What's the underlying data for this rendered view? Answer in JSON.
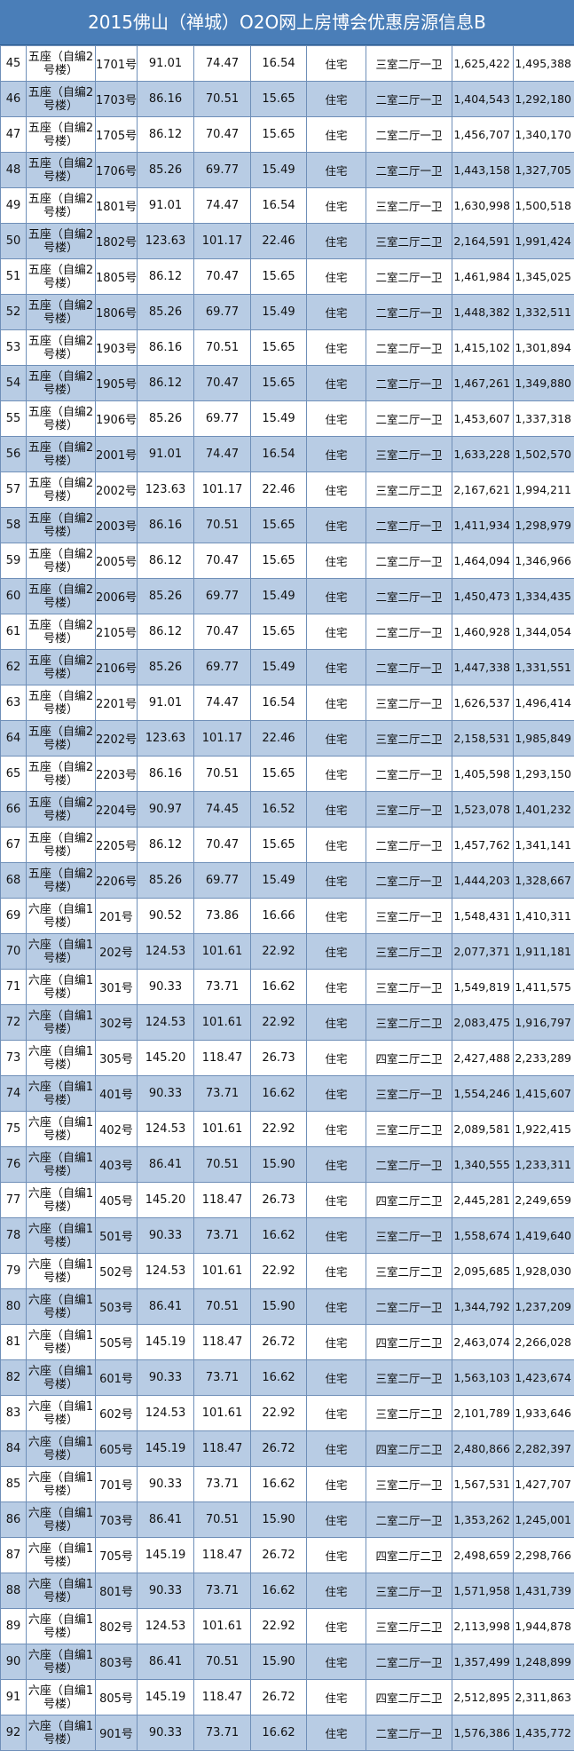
{
  "title": "2015佛山（禅城）O2O网上房博会优惠房源信息B",
  "rows": [
    [
      "45",
      "五座（自编2号楼）",
      "1701号",
      "91.01",
      "74.47",
      "16.54",
      "住宅",
      "三室二厅一卫",
      "1,625,422",
      "1,495,388"
    ],
    [
      "46",
      "五座（自编2号楼）",
      "1703号",
      "86.16",
      "70.51",
      "15.65",
      "住宅",
      "二室二厅一卫",
      "1,404,543",
      "1,292,180"
    ],
    [
      "47",
      "五座（自编2号楼）",
      "1705号",
      "86.12",
      "70.47",
      "15.65",
      "住宅",
      "二室二厅一卫",
      "1,456,707",
      "1,340,170"
    ],
    [
      "48",
      "五座（自编2号楼）",
      "1706号",
      "85.26",
      "69.77",
      "15.49",
      "住宅",
      "二室二厅一卫",
      "1,443,158",
      "1,327,705"
    ],
    [
      "49",
      "五座（自编2号楼）",
      "1801号",
      "91.01",
      "74.47",
      "16.54",
      "住宅",
      "三室二厅一卫",
      "1,630,998",
      "1,500,518"
    ],
    [
      "50",
      "五座（自编2号楼）",
      "1802号",
      "123.63",
      "101.17",
      "22.46",
      "住宅",
      "三室二厅二卫",
      "2,164,591",
      "1,991,424"
    ],
    [
      "51",
      "五座（自编2号楼）",
      "1805号",
      "86.12",
      "70.47",
      "15.65",
      "住宅",
      "二室二厅一卫",
      "1,461,984",
      "1,345,025"
    ],
    [
      "52",
      "五座（自编2号楼）",
      "1806号",
      "85.26",
      "69.77",
      "15.49",
      "住宅",
      "二室二厅一卫",
      "1,448,382",
      "1,332,511"
    ],
    [
      "53",
      "五座（自编2号楼）",
      "1903号",
      "86.16",
      "70.51",
      "15.65",
      "住宅",
      "二室二厅一卫",
      "1,415,102",
      "1,301,894"
    ],
    [
      "54",
      "五座（自编2号楼）",
      "1905号",
      "86.12",
      "70.47",
      "15.65",
      "住宅",
      "二室二厅一卫",
      "1,467,261",
      "1,349,880"
    ],
    [
      "55",
      "五座（自编2号楼）",
      "1906号",
      "85.26",
      "69.77",
      "15.49",
      "住宅",
      "二室二厅一卫",
      "1,453,607",
      "1,337,318"
    ],
    [
      "56",
      "五座（自编2号楼）",
      "2001号",
      "91.01",
      "74.47",
      "16.54",
      "住宅",
      "三室二厅一卫",
      "1,633,228",
      "1,502,570"
    ],
    [
      "57",
      "五座（自编2号楼）",
      "2002号",
      "123.63",
      "101.17",
      "22.46",
      "住宅",
      "三室二厅二卫",
      "2,167,621",
      "1,994,211"
    ],
    [
      "58",
      "五座（自编2号楼）",
      "2003号",
      "86.16",
      "70.51",
      "15.65",
      "住宅",
      "二室二厅一卫",
      "1,411,934",
      "1,298,979"
    ],
    [
      "59",
      "五座（自编2号楼）",
      "2005号",
      "86.12",
      "70.47",
      "15.65",
      "住宅",
      "二室二厅一卫",
      "1,464,094",
      "1,346,966"
    ],
    [
      "60",
      "五座（自编2号楼）",
      "2006号",
      "85.26",
      "69.77",
      "15.49",
      "住宅",
      "二室二厅一卫",
      "1,450,473",
      "1,334,435"
    ],
    [
      "61",
      "五座（自编2号楼）",
      "2105号",
      "86.12",
      "70.47",
      "15.65",
      "住宅",
      "二室二厅一卫",
      "1,460,928",
      "1,344,054"
    ],
    [
      "62",
      "五座（自编2号楼）",
      "2106号",
      "85.26",
      "69.77",
      "15.49",
      "住宅",
      "二室二厅一卫",
      "1,447,338",
      "1,331,551"
    ],
    [
      "63",
      "五座（自编2号楼）",
      "2201号",
      "91.01",
      "74.47",
      "16.54",
      "住宅",
      "三室二厅一卫",
      "1,626,537",
      "1,496,414"
    ],
    [
      "64",
      "五座（自编2号楼）",
      "2202号",
      "123.63",
      "101.17",
      "22.46",
      "住宅",
      "三室二厅二卫",
      "2,158,531",
      "1,985,849"
    ],
    [
      "65",
      "五座（自编2号楼）",
      "2203号",
      "86.16",
      "70.51",
      "15.65",
      "住宅",
      "二室二厅一卫",
      "1,405,598",
      "1,293,150"
    ],
    [
      "66",
      "五座（自编2号楼）",
      "2204号",
      "90.97",
      "74.45",
      "16.52",
      "住宅",
      "三室二厅一卫",
      "1,523,078",
      "1,401,232"
    ],
    [
      "67",
      "五座（自编2号楼）",
      "2205号",
      "86.12",
      "70.47",
      "15.65",
      "住宅",
      "二室二厅一卫",
      "1,457,762",
      "1,341,141"
    ],
    [
      "68",
      "五座（自编2号楼）",
      "2206号",
      "85.26",
      "69.77",
      "15.49",
      "住宅",
      "二室二厅一卫",
      "1,444,203",
      "1,328,667"
    ],
    [
      "69",
      "六座（自编1号楼）",
      "201号",
      "90.52",
      "73.86",
      "16.66",
      "住宅",
      "三室二厅一卫",
      "1,548,431",
      "1,410,311"
    ],
    [
      "70",
      "六座（自编1号楼）",
      "202号",
      "124.53",
      "101.61",
      "22.92",
      "住宅",
      "三室二厅二卫",
      "2,077,371",
      "1,911,181"
    ],
    [
      "71",
      "六座（自编1号楼）",
      "301号",
      "90.33",
      "73.71",
      "16.62",
      "住宅",
      "三室二厅一卫",
      "1,549,819",
      "1,411,575"
    ],
    [
      "72",
      "六座（自编1号楼）",
      "302号",
      "124.53",
      "101.61",
      "22.92",
      "住宅",
      "三室二厅二卫",
      "2,083,475",
      "1,916,797"
    ],
    [
      "73",
      "六座（自编1号楼）",
      "305号",
      "145.20",
      "118.47",
      "26.73",
      "住宅",
      "四室二厅二卫",
      "2,427,488",
      "2,233,289"
    ],
    [
      "74",
      "六座（自编1号楼）",
      "401号",
      "90.33",
      "73.71",
      "16.62",
      "住宅",
      "三室二厅一卫",
      "1,554,246",
      "1,415,607"
    ],
    [
      "75",
      "六座（自编1号楼）",
      "402号",
      "124.53",
      "101.61",
      "22.92",
      "住宅",
      "三室二厅二卫",
      "2,089,581",
      "1,922,415"
    ],
    [
      "76",
      "六座（自编1号楼）",
      "403号",
      "86.41",
      "70.51",
      "15.90",
      "住宅",
      "二室二厅一卫",
      "1,340,555",
      "1,233,311"
    ],
    [
      "77",
      "六座（自编1号楼）",
      "405号",
      "145.20",
      "118.47",
      "26.73",
      "住宅",
      "四室二厅二卫",
      "2,445,281",
      "2,249,659"
    ],
    [
      "78",
      "六座（自编1号楼）",
      "501号",
      "90.33",
      "73.71",
      "16.62",
      "住宅",
      "三室二厅一卫",
      "1,558,674",
      "1,419,640"
    ],
    [
      "79",
      "六座（自编1号楼）",
      "502号",
      "124.53",
      "101.61",
      "22.92",
      "住宅",
      "三室二厅二卫",
      "2,095,685",
      "1,928,030"
    ],
    [
      "80",
      "六座（自编1号楼）",
      "503号",
      "86.41",
      "70.51",
      "15.90",
      "住宅",
      "二室二厅一卫",
      "1,344,792",
      "1,237,209"
    ],
    [
      "81",
      "六座（自编1号楼）",
      "505号",
      "145.19",
      "118.47",
      "26.72",
      "住宅",
      "四室二厅二卫",
      "2,463,074",
      "2,266,028"
    ],
    [
      "82",
      "六座（自编1号楼）",
      "601号",
      "90.33",
      "73.71",
      "16.62",
      "住宅",
      "三室二厅一卫",
      "1,563,103",
      "1,423,674"
    ],
    [
      "83",
      "六座（自编1号楼）",
      "602号",
      "124.53",
      "101.61",
      "22.92",
      "住宅",
      "三室二厅二卫",
      "2,101,789",
      "1,933,646"
    ],
    [
      "84",
      "六座（自编1号楼）",
      "605号",
      "145.19",
      "118.47",
      "26.72",
      "住宅",
      "四室二厅二卫",
      "2,480,866",
      "2,282,397"
    ],
    [
      "85",
      "六座（自编1号楼）",
      "701号",
      "90.33",
      "73.71",
      "16.62",
      "住宅",
      "三室二厅一卫",
      "1,567,531",
      "1,427,707"
    ],
    [
      "86",
      "六座（自编1号楼）",
      "703号",
      "86.41",
      "70.51",
      "15.90",
      "住宅",
      "二室二厅一卫",
      "1,353,262",
      "1,245,001"
    ],
    [
      "87",
      "六座（自编1号楼）",
      "705号",
      "145.19",
      "118.47",
      "26.72",
      "住宅",
      "四室二厅二卫",
      "2,498,659",
      "2,298,766"
    ],
    [
      "88",
      "六座（自编1号楼）",
      "801号",
      "90.33",
      "73.71",
      "16.62",
      "住宅",
      "三室二厅一卫",
      "1,571,958",
      "1,431,739"
    ],
    [
      "89",
      "六座（自编1号楼）",
      "802号",
      "124.53",
      "101.61",
      "22.92",
      "住宅",
      "三室二厅二卫",
      "2,113,998",
      "1,944,878"
    ],
    [
      "90",
      "六座（自编1号楼）",
      "803号",
      "86.41",
      "70.51",
      "15.90",
      "住宅",
      "二室二厅一卫",
      "1,357,499",
      "1,248,899"
    ],
    [
      "91",
      "六座（自编1号楼）",
      "805号",
      "145.19",
      "118.47",
      "26.72",
      "住宅",
      "四室二厅二卫",
      "2,512,895",
      "2,311,863"
    ],
    [
      "92",
      "六座（自编1号楼）",
      "901号",
      "90.33",
      "73.71",
      "16.62",
      "住宅",
      "二室二厅一卫",
      "1,576,386",
      "1,435,772"
    ]
  ]
}
